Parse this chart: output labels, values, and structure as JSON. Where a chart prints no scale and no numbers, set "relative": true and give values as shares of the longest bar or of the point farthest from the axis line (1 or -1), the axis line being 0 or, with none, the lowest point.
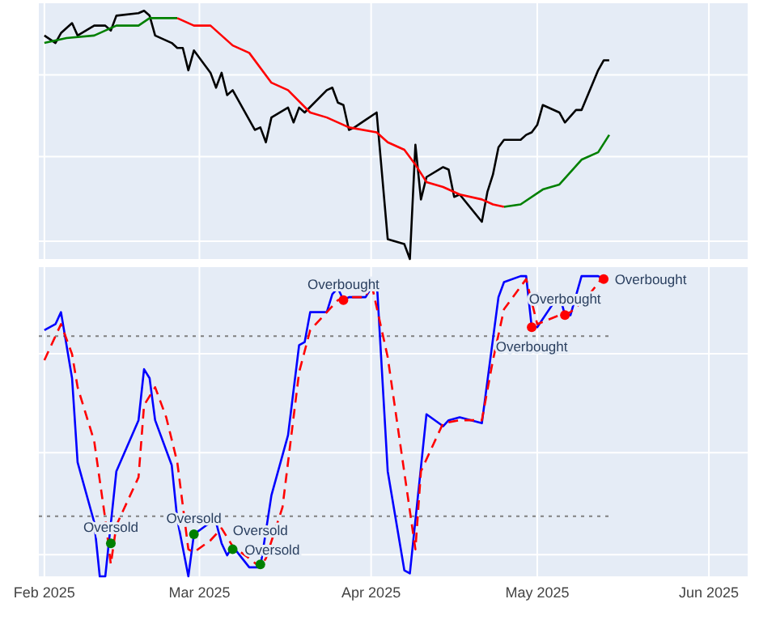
{
  "chart_data": [
    {
      "type": "line",
      "relative": true,
      "grid": true,
      "tick_labels": false,
      "xlim": [
        "2025-01-31",
        "2025-06-08"
      ],
      "xticks": [
        {
          "value": "2025-02-01",
          "label": null
        },
        {
          "value": "2025-03-01",
          "label": null
        },
        {
          "value": "2025-04-01",
          "label": null
        },
        {
          "value": "2025-05-01",
          "label": null
        },
        {
          "value": "2025-06-01",
          "label": null
        }
      ],
      "series": [
        {
          "type": "line",
          "color": "#000000",
          "x": [
            "2025-02-01",
            "2025-02-03",
            "2025-02-04",
            "2025-02-06",
            "2025-02-07",
            "2025-02-10",
            "2025-02-12",
            "2025-02-13",
            "2025-02-14",
            "2025-02-18",
            "2025-02-19",
            "2025-02-20",
            "2025-02-21",
            "2025-02-24",
            "2025-02-25",
            "2025-02-26",
            "2025-02-27",
            "2025-02-28",
            "2025-03-03",
            "2025-03-04",
            "2025-03-05",
            "2025-03-06",
            "2025-03-07",
            "2025-03-11",
            "2025-03-12",
            "2025-03-13",
            "2025-03-14",
            "2025-03-17",
            "2025-03-18",
            "2025-03-19",
            "2025-03-20",
            "2025-03-24",
            "2025-03-25",
            "2025-03-26",
            "2025-03-27",
            "2025-03-28",
            "2025-03-29",
            "2025-03-31",
            "2025-04-02",
            "2025-04-04",
            "2025-04-07",
            "2025-04-08",
            "2025-04-09",
            "2025-04-10",
            "2025-04-11",
            "2025-04-14",
            "2025-04-15",
            "2025-04-16",
            "2025-04-17",
            "2025-04-21",
            "2025-04-22",
            "2025-04-23",
            "2025-04-24",
            "2025-04-25",
            "2025-04-28",
            "2025-04-29",
            "2025-04-30",
            "2025-05-01",
            "2025-05-02",
            "2025-05-05",
            "2025-05-06",
            "2025-05-08",
            "2025-05-09",
            "2025-05-12",
            "2025-05-13",
            "2025-05-14"
          ],
          "values": [
            0.9,
            0.87,
            0.91,
            0.95,
            0.9,
            0.94,
            0.94,
            0.92,
            0.98,
            0.99,
            1.0,
            0.98,
            0.9,
            0.87,
            0.85,
            0.85,
            0.76,
            0.84,
            0.75,
            0.69,
            0.75,
            0.66,
            0.68,
            0.52,
            0.53,
            0.47,
            0.57,
            0.61,
            0.55,
            0.61,
            0.59,
            0.68,
            0.69,
            0.63,
            0.62,
            0.52,
            0.53,
            0.56,
            0.59,
            0.08,
            0.06,
            0,
            0.46,
            0.24,
            0.33,
            0.37,
            0.36,
            0.25,
            0.26,
            0.15,
            0.27,
            0.34,
            0.45,
            0.48,
            0.48,
            0.5,
            0.51,
            0.54,
            0.62,
            0.59,
            0.55,
            0.6,
            0.6,
            0.76,
            0.8,
            0.8
          ]
        },
        {
          "type": "line",
          "color": "#008000",
          "x": [
            "2025-02-01",
            "2025-02-05",
            "2025-02-10",
            "2025-02-14",
            "2025-02-18",
            "2025-02-20",
            "2025-02-23",
            "2025-02-25"
          ],
          "values": [
            0.87,
            0.89,
            0.9,
            0.94,
            0.94,
            0.97,
            0.97,
            0.97
          ]
        },
        {
          "type": "line",
          "color": "#ff0000",
          "x": [
            "2025-02-25",
            "2025-02-28",
            "2025-03-03",
            "2025-03-07",
            "2025-03-10",
            "2025-03-14",
            "2025-03-17",
            "2025-03-21",
            "2025-03-24",
            "2025-03-28",
            "2025-04-02",
            "2025-04-04",
            "2025-04-07",
            "2025-04-09",
            "2025-04-11",
            "2025-04-14",
            "2025-04-17",
            "2025-04-21",
            "2025-04-23",
            "2025-04-25"
          ],
          "values": [
            0.97,
            0.94,
            0.94,
            0.86,
            0.83,
            0.71,
            0.68,
            0.59,
            0.57,
            0.53,
            0.51,
            0.47,
            0.44,
            0.38,
            0.31,
            0.29,
            0.26,
            0.24,
            0.22,
            0.21
          ]
        },
        {
          "type": "line",
          "color": "#008000",
          "x": [
            "2025-04-25",
            "2025-04-28",
            "2025-05-02",
            "2025-05-05",
            "2025-05-09",
            "2025-05-12",
            "2025-05-14"
          ],
          "values": [
            0.21,
            0.22,
            0.28,
            0.3,
            0.4,
            0.43,
            0.5
          ]
        }
      ]
    },
    {
      "type": "line",
      "relative": true,
      "grid": true,
      "tick_labels": "x",
      "xlim": [
        "2025-01-31",
        "2025-06-08"
      ],
      "xticks": [
        {
          "value": "2025-02-01",
          "label": "Feb 2025"
        },
        {
          "value": "2025-03-01",
          "label": "Mar 2025"
        },
        {
          "value": "2025-04-01",
          "label": "Apr 2025"
        },
        {
          "value": "2025-05-01",
          "label": "May 2025"
        },
        {
          "value": "2025-06-01",
          "label": "Jun 2025"
        }
      ],
      "ref_lines": [
        {
          "axis": "y",
          "value": 0.8,
          "color": "#808080",
          "line_style": "dotted"
        },
        {
          "axis": "y",
          "value": 0.2,
          "color": "#808080",
          "line_style": "dotted"
        }
      ],
      "series": [
        {
          "type": "line",
          "color": "#0000ff",
          "x": [
            "2025-02-01",
            "2025-02-03",
            "2025-02-04",
            "2025-02-06",
            "2025-02-07",
            "2025-02-10",
            "2025-02-11",
            "2025-02-12",
            "2025-02-14",
            "2025-02-18",
            "2025-02-19",
            "2025-02-20",
            "2025-02-21",
            "2025-02-24",
            "2025-02-25",
            "2025-02-27",
            "2025-02-28",
            "2025-03-03",
            "2025-03-04",
            "2025-03-05",
            "2025-03-06",
            "2025-03-07",
            "2025-03-10",
            "2025-03-12",
            "2025-03-14",
            "2025-03-17",
            "2025-03-19",
            "2025-03-20",
            "2025-03-21",
            "2025-03-24",
            "2025-03-25",
            "2025-03-26",
            "2025-03-27",
            "2025-03-28",
            "2025-03-31",
            "2025-04-02",
            "2025-04-04",
            "2025-04-07",
            "2025-04-08",
            "2025-04-11",
            "2025-04-14",
            "2025-04-15",
            "2025-04-17",
            "2025-04-21",
            "2025-04-24",
            "2025-04-25",
            "2025-04-28",
            "2025-04-29",
            "2025-04-30",
            "2025-05-01",
            "2025-05-05",
            "2025-05-06",
            "2025-05-07",
            "2025-05-09",
            "2025-05-12",
            "2025-05-13"
          ],
          "values": [
            0.82,
            0.84,
            0.88,
            0.66,
            0.38,
            0.18,
            0,
            0,
            0.35,
            0.52,
            0.69,
            0.66,
            0.52,
            0.37,
            0.19,
            0,
            0.14,
            0.18,
            0.18,
            0.11,
            0.07,
            0.1,
            0.03,
            0.03,
            0.27,
            0.47,
            0.77,
            0.78,
            0.88,
            0.88,
            0.94,
            0.96,
            0.92,
            0.93,
            0.93,
            0.99,
            0.35,
            0.02,
            0.01,
            0.54,
            0.5,
            0.52,
            0.53,
            0.51,
            0.93,
            0.98,
            1.0,
            1.0,
            0.83,
            0.83,
            0.94,
            0.87,
            0.87,
            1.0,
            1.0,
            0.99
          ]
        },
        {
          "type": "line",
          "color": "#ff0000",
          "line_style": "dashed",
          "x": [
            "2025-02-01",
            "2025-02-04",
            "2025-02-06",
            "2025-02-07",
            "2025-02-10",
            "2025-02-12",
            "2025-02-13",
            "2025-02-14",
            "2025-02-18",
            "2025-02-19",
            "2025-02-21",
            "2025-02-23",
            "2025-02-25",
            "2025-02-27",
            "2025-02-28",
            "2025-03-03",
            "2025-03-05",
            "2025-03-07",
            "2025-03-10",
            "2025-03-12",
            "2025-03-13",
            "2025-03-16",
            "2025-03-19",
            "2025-03-21",
            "2025-03-23",
            "2025-03-26",
            "2025-03-28",
            "2025-03-31",
            "2025-04-01",
            "2025-04-04",
            "2025-04-09",
            "2025-04-10",
            "2025-04-14",
            "2025-04-17",
            "2025-04-21",
            "2025-04-23",
            "2025-04-25",
            "2025-04-29",
            "2025-05-01",
            "2025-05-05",
            "2025-05-07",
            "2025-05-10",
            "2025-05-13",
            "2025-05-14"
          ],
          "values": [
            0.72,
            0.84,
            0.74,
            0.63,
            0.45,
            0.19,
            0.04,
            0.17,
            0.33,
            0.57,
            0.63,
            0.53,
            0.38,
            0.09,
            0.08,
            0.12,
            0.16,
            0.1,
            0.06,
            0.03,
            0.06,
            0.23,
            0.68,
            0.82,
            0.86,
            0.92,
            0.93,
            0.93,
            0.98,
            0.73,
            0.09,
            0.35,
            0.51,
            0.52,
            0.52,
            0.72,
            0.89,
            0.99,
            0.84,
            0.87,
            0.88,
            0.93,
            1.0,
            0.99
          ]
        },
        {
          "type": "scatter",
          "color": "#008000",
          "marker": "circle",
          "x": [
            "2025-02-13",
            "2025-02-28",
            "2025-03-07",
            "2025-03-12"
          ],
          "values": [
            0.11,
            0.14,
            0.09,
            0.04
          ]
        },
        {
          "type": "scatter",
          "color": "#ff0000",
          "marker": "circle",
          "x": [
            "2025-03-27",
            "2025-04-30",
            "2025-05-06",
            "2025-05-13"
          ],
          "values": [
            0.92,
            0.83,
            0.87,
            0.99
          ]
        }
      ],
      "annotations": [
        {
          "text": "Oversold",
          "x": "2025-02-13",
          "y": 0.11
        },
        {
          "text": "Oversold",
          "x": "2025-02-28",
          "y": 0.14
        },
        {
          "text": "Oversold",
          "x": "2025-03-07",
          "y": 0.09
        },
        {
          "text": "Oversold",
          "x": "2025-03-12",
          "y": 0.04
        },
        {
          "text": "Overbought",
          "x": "2025-03-27",
          "y": 0.92
        },
        {
          "text": "Overbought",
          "x": "2025-04-30",
          "y": 0.83
        },
        {
          "text": "Overbought",
          "x": "2025-05-06",
          "y": 0.87
        },
        {
          "text": "Overbought",
          "x": "2025-05-13",
          "y": 0.99
        }
      ]
    }
  ]
}
